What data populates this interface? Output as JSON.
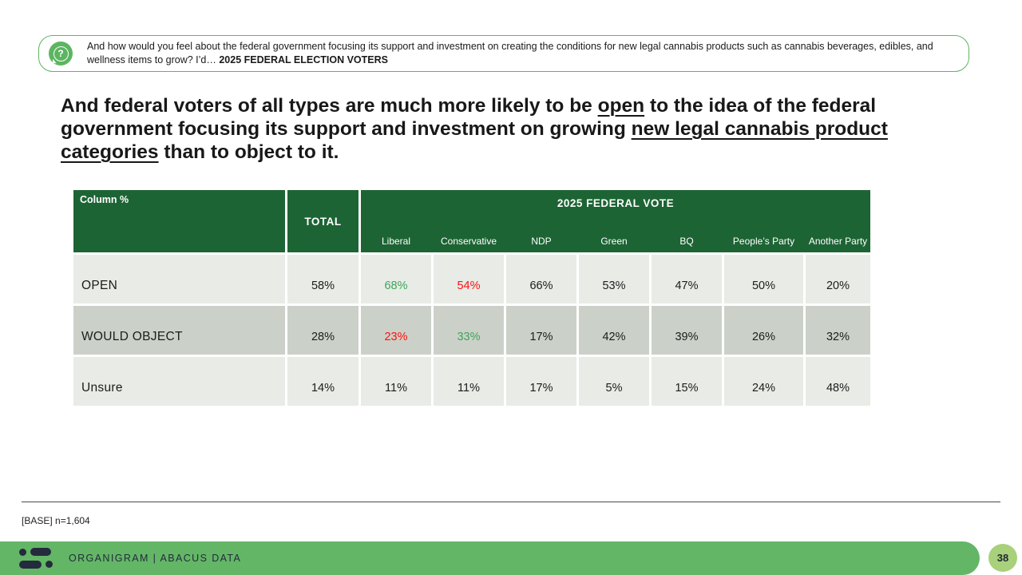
{
  "question_box": {
    "icon": "question-mark-speech-bubble",
    "text_regular": "And how would you feel about the federal government focusing its support and investment on creating the conditions for new legal cannabis products such as cannabis beverages, edibles, and wellness items to grow? I’d… ",
    "text_bold": "2025 FEDERAL ELECTION VOTERS"
  },
  "headline": {
    "segments": [
      {
        "text": "And federal voters of all types are much more likely to be ",
        "underline": false
      },
      {
        "text": "open",
        "underline": true
      },
      {
        "text": " to the idea of the federal government focusing its support and investment on growing ",
        "underline": false
      },
      {
        "text": "new legal cannabis product categories",
        "underline": true
      },
      {
        "text": " than to object to it.",
        "underline": false
      }
    ]
  },
  "table": {
    "corner_label": "Column %",
    "total_header": "TOTAL",
    "group_header": "2025 FEDERAL VOTE",
    "party_columns": [
      "Liberal",
      "Conservative",
      "NDP",
      "Green",
      "BQ",
      "People’s Party",
      "Another Party"
    ],
    "rows": [
      {
        "label": "OPEN",
        "shade": "light",
        "cells": [
          {
            "v": "58%",
            "color": "default"
          },
          {
            "v": "68%",
            "color": "green"
          },
          {
            "v": "54%",
            "color": "red"
          },
          {
            "v": "66%",
            "color": "default"
          },
          {
            "v": "53%",
            "color": "default"
          },
          {
            "v": "47%",
            "color": "default"
          },
          {
            "v": "50%",
            "color": "default"
          },
          {
            "v": "20%",
            "color": "default"
          }
        ]
      },
      {
        "label": "WOULD OBJECT",
        "shade": "dark",
        "cells": [
          {
            "v": "28%",
            "color": "default"
          },
          {
            "v": "23%",
            "color": "red"
          },
          {
            "v": "33%",
            "color": "green"
          },
          {
            "v": "17%",
            "color": "default"
          },
          {
            "v": "42%",
            "color": "default"
          },
          {
            "v": "39%",
            "color": "default"
          },
          {
            "v": "26%",
            "color": "default"
          },
          {
            "v": "32%",
            "color": "default"
          }
        ]
      },
      {
        "label": "Unsure",
        "shade": "light",
        "cells": [
          {
            "v": "14%",
            "color": "default"
          },
          {
            "v": "11%",
            "color": "default"
          },
          {
            "v": "11%",
            "color": "default"
          },
          {
            "v": "17%",
            "color": "default"
          },
          {
            "v": "5%",
            "color": "default"
          },
          {
            "v": "15%",
            "color": "default"
          },
          {
            "v": "24%",
            "color": "default"
          },
          {
            "v": "48%",
            "color": "default"
          }
        ]
      }
    ]
  },
  "chart_data": {
    "type": "table",
    "title": "Column %",
    "group_header": "2025 FEDERAL VOTE",
    "columns": [
      "TOTAL",
      "Liberal",
      "Conservative",
      "NDP",
      "Green",
      "BQ",
      "People’s Party",
      "Another Party"
    ],
    "rows": [
      {
        "label": "OPEN",
        "values_pct": [
          58,
          68,
          54,
          66,
          53,
          47,
          50,
          20
        ]
      },
      {
        "label": "WOULD OBJECT",
        "values_pct": [
          28,
          23,
          33,
          17,
          42,
          39,
          26,
          32
        ]
      },
      {
        "label": "Unsure",
        "values_pct": [
          14,
          11,
          11,
          17,
          5,
          15,
          24,
          48
        ]
      }
    ]
  },
  "footer": {
    "base_note": "[BASE] n=1,604"
  },
  "bottom_bar": {
    "brand": "ORGANIGRAM | ABACUS DATA",
    "page_number": "38"
  },
  "colors": {
    "header_green": "#1d6434",
    "box_border_green": "#5cb560",
    "accent_green": "#3fa45b",
    "accent_red": "#fe1010",
    "row_light": "#e8ebe6",
    "row_dark": "#cbd1c8",
    "bar_green": "#63b666",
    "page_circle_green": "#a9d07a",
    "logo_navy": "#242b3c"
  }
}
